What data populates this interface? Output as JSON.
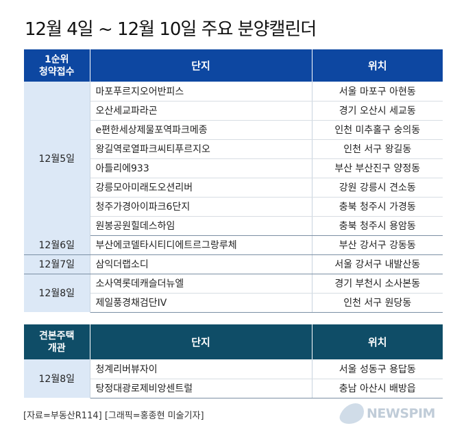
{
  "title": "12월 4일 ~ 12월 10일 주요 분양캘린더",
  "section1": {
    "header_col1_line1": "1순위",
    "header_col1_line2": "청약접수",
    "header_col2": "단지",
    "header_col3": "위치",
    "groups": [
      {
        "date": "12월5일",
        "rows": [
          {
            "name": "마포푸르지오어반피스",
            "location": "서울 마포구 아현동"
          },
          {
            "name": "오산세교파라곤",
            "location": "경기 오산시 세교동"
          },
          {
            "name": "e편한세상제물포역파크메종",
            "location": "인천 미추홀구 숭의동"
          },
          {
            "name": "왕길역로열파크씨티푸르지오",
            "location": "인천 서구 왕길동"
          },
          {
            "name": "아틀리에933",
            "location": "부산 부산진구 양정동"
          },
          {
            "name": "강릉모아미래도오션리버",
            "location": "강원 강릉시 견소동"
          },
          {
            "name": "청주가경아이파크6단지",
            "location": "충북 청주시 가경동"
          },
          {
            "name": "원봉공원힐데스하임",
            "location": "충북 청주시 용암동"
          }
        ]
      },
      {
        "date": "12월6일",
        "rows": [
          {
            "name": "부산에코델타시티디에트르그랑루체",
            "location": "부산 강서구 강동동"
          }
        ]
      },
      {
        "date": "12월7일",
        "rows": [
          {
            "name": "삼익더랩소디",
            "location": "서울 강서구 내발산동"
          }
        ]
      },
      {
        "date": "12월8일",
        "rows": [
          {
            "name": "소사역롯데캐슬더뉴엘",
            "location": "경기 부천시 소사본동"
          },
          {
            "name": "제일풍경채검단IV",
            "location": "인천 서구 원당동"
          }
        ]
      }
    ]
  },
  "section2": {
    "header_col1_line1": "견본주택",
    "header_col1_line2": "개관",
    "header_col2": "단지",
    "header_col3": "위치",
    "groups": [
      {
        "date": "12월8일",
        "rows": [
          {
            "name": "청계리버뷰자이",
            "location": "서울 성동구 용답동"
          },
          {
            "name": "탕정대광로제비앙센트럴",
            "location": "충남 아산시 배방읍"
          }
        ]
      }
    ]
  },
  "source": "[자료=부동산R114] [그래픽=홍종현 미술기자]",
  "logo_text": "NEWSPIM",
  "colors": {
    "header1": "#0d47a1",
    "header2": "#0f4d67",
    "date_cell": "#dce8f6"
  }
}
